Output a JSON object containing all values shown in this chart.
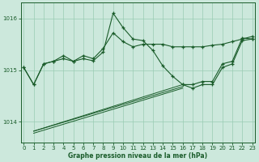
{
  "title": "Graphe pression niveau de la mer (hPa)",
  "bg_color": "#cce8dc",
  "grid_color": "#99ccb3",
  "line_color": "#1a5c2a",
  "xlim": [
    -0.3,
    23.3
  ],
  "ylim": [
    1013.6,
    1016.3
  ],
  "yticks": [
    1014,
    1015,
    1016
  ],
  "xticks": [
    0,
    1,
    2,
    3,
    4,
    5,
    6,
    7,
    8,
    9,
    10,
    11,
    12,
    13,
    14,
    15,
    16,
    17,
    18,
    19,
    20,
    21,
    22,
    23
  ],
  "main_line": {
    "x": [
      0,
      1,
      2,
      3,
      4,
      5,
      6,
      7,
      8,
      9,
      10,
      11,
      12,
      13,
      14,
      15,
      16,
      17,
      18,
      19,
      20,
      21,
      22,
      23
    ],
    "y": [
      1015.05,
      1014.72,
      1015.12,
      1015.17,
      1015.22,
      1015.17,
      1015.22,
      1015.18,
      1015.35,
      1016.1,
      1015.82,
      1015.6,
      1015.57,
      1015.38,
      1015.08,
      1014.88,
      1014.72,
      1014.72,
      1014.78,
      1014.78,
      1015.12,
      1015.17,
      1015.62,
      1015.6
    ]
  },
  "second_line": {
    "x": [
      0,
      1,
      2,
      3,
      4,
      5,
      6,
      7,
      8,
      9,
      10,
      11,
      12,
      13,
      14,
      15,
      16,
      17,
      18,
      19,
      20,
      21,
      22,
      23
    ],
    "y": [
      1015.05,
      1014.72,
      1015.12,
      1015.17,
      1015.28,
      1015.17,
      1015.28,
      1015.22,
      1015.42,
      1015.72,
      1015.55,
      1015.45,
      1015.5,
      1015.5,
      1015.5,
      1015.45,
      1015.45,
      1015.45,
      1015.45,
      1015.48,
      1015.5,
      1015.55,
      1015.6,
      1015.65
    ]
  },
  "third_line": {
    "x": [
      16,
      17,
      18,
      19,
      20,
      21,
      22,
      23
    ],
    "y": [
      1014.72,
      1014.65,
      1014.72,
      1014.72,
      1015.05,
      1015.12,
      1015.57,
      1015.6
    ]
  },
  "trend1": {
    "x": [
      1,
      16
    ],
    "y": [
      1013.82,
      1014.72
    ]
  },
  "trend2": {
    "x": [
      1,
      16
    ],
    "y": [
      1013.82,
      1014.68
    ]
  },
  "trend3": {
    "x": [
      1,
      16
    ],
    "y": [
      1013.78,
      1014.65
    ]
  }
}
